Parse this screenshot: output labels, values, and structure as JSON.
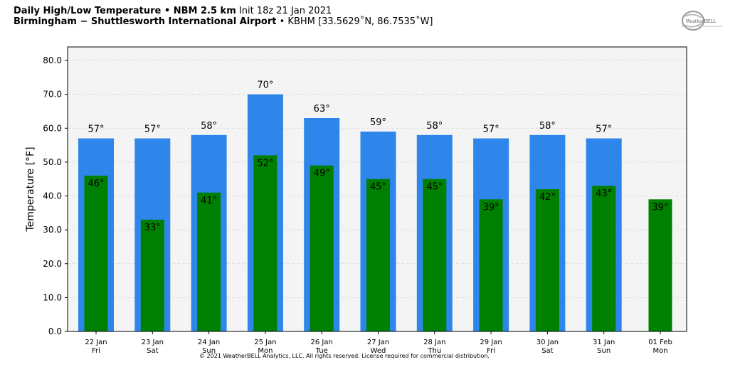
{
  "header": {
    "title_bold": "Daily High/Low Temperature • NBM 2.5 km",
    "title_init": "Init 18z 21 Jan 2021",
    "location_bold": "Birmingham − Shuttlesworth International Airport",
    "location_rest": "• KBHM [33.5629˚N, 86.7535˚W]"
  },
  "logo_text": "WeatherBELL",
  "copyright": "© 2021 WeatherBELL Analytics, LLC. All rights reserved. License required for commercial distribution.",
  "colors": {
    "high": "#2e86eb",
    "low": "#008000",
    "plot_bg": "#f4f4f4",
    "grid": "#d8d8d8"
  },
  "chart_data": {
    "type": "bar",
    "ylabel": "Temperature [°F]",
    "ylim": [
      0,
      84
    ],
    "yticks": [
      0,
      10,
      20,
      30,
      40,
      50,
      60,
      70,
      80
    ],
    "ytick_labels": [
      "0.0",
      "10.0",
      "20.0",
      "30.0",
      "40.0",
      "50.0",
      "60.0",
      "70.0",
      "80.0"
    ],
    "grid": true,
    "categories": [
      "22 Jan",
      "23 Jan",
      "24 Jan",
      "25 Jan",
      "26 Jan",
      "27 Jan",
      "28 Jan",
      "29 Jan",
      "30 Jan",
      "31 Jan",
      "01 Feb"
    ],
    "weekdays": [
      "Fri",
      "Sat",
      "Sun",
      "Mon",
      "Tue",
      "Wed",
      "Thu",
      "Fri",
      "Sat",
      "Sun",
      "Mon"
    ],
    "series": [
      {
        "values": [
          57,
          57,
          58,
          70,
          63,
          59,
          58,
          57,
          58,
          57,
          null
        ],
        "labels": [
          "57°",
          "57°",
          "58°",
          "70°",
          "63°",
          "59°",
          "58°",
          "57°",
          "58°",
          "57°",
          ""
        ]
      },
      {
        "values": [
          46,
          33,
          41,
          52,
          49,
          45,
          45,
          39,
          42,
          43,
          39
        ],
        "labels": [
          "46°",
          "33°",
          "41°",
          "52°",
          "49°",
          "45°",
          "45°",
          "39°",
          "42°",
          "43°",
          "39°"
        ]
      }
    ]
  }
}
